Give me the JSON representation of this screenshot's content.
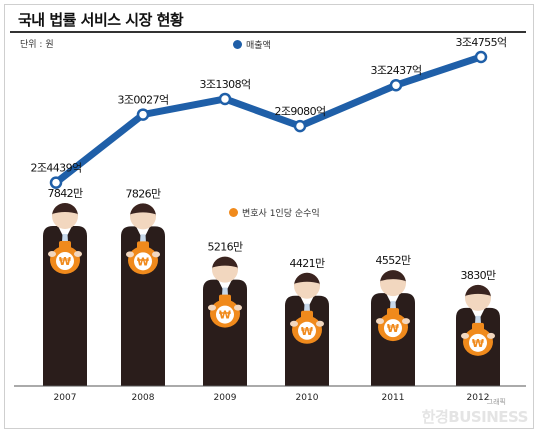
{
  "title": "국내 법률 서비스 시장 현황",
  "unit": "단위 : 원",
  "watermark": "한경BUSINESS",
  "credit": "그래픽",
  "colors": {
    "revenue": "#1f5fa8",
    "income": "#f08a1c",
    "body": "#2a1d1b",
    "skin": "#f2d7bf",
    "hair": "#3a2420"
  },
  "chart_data": [
    {
      "type": "line",
      "name": "매출액",
      "x": [
        "2007",
        "2008",
        "2009",
        "2010",
        "2011",
        "2012"
      ],
      "values": [
        24439,
        30027,
        31308,
        29080,
        32437,
        34755
      ],
      "value_unit": "억",
      "labels": [
        "2조4439억",
        "3조0027억",
        "3조1308억",
        "2조9080억",
        "3조2437억",
        "3조4755억"
      ],
      "legend": "매출액"
    },
    {
      "type": "bar",
      "name": "변호사 1인당 순수익",
      "categories": [
        "2007",
        "2008",
        "2009",
        "2010",
        "2011",
        "2012"
      ],
      "values": [
        7842,
        7826,
        5216,
        4421,
        4552,
        3830
      ],
      "value_unit": "만",
      "labels": [
        "7842만",
        "7826만",
        "5216만",
        "4421만",
        "4552만",
        "3830만"
      ],
      "legend": "변호사 1인당 순수익"
    }
  ]
}
